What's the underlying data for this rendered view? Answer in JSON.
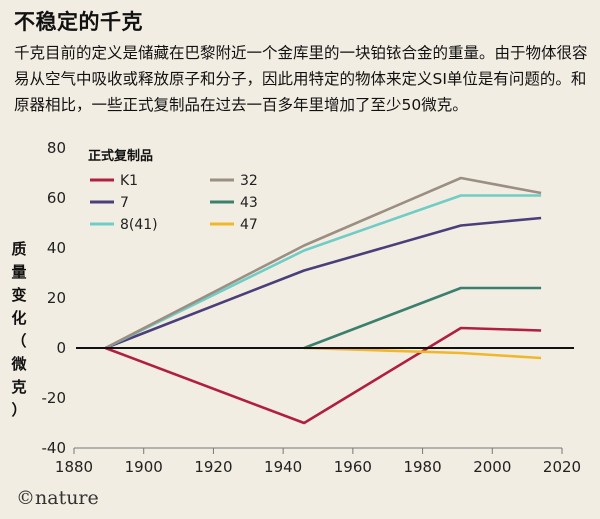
{
  "title": "不稳定的千克",
  "description": "千克目前的定义是储藏在巴黎附近一个金库里的一块铂铱合金的重量。由于物体很容易从空气中吸收或释放原子和分子，因此用特定的物体来定义SI单位是有问题的。和原器相比，一些正式复制品在过去一百多年里增加了至少50微克。",
  "credit": "©nature",
  "chart_data": {
    "type": "line",
    "title": "",
    "xlabel": "",
    "ylabel_chars": [
      "质",
      "量",
      "变",
      "化",
      "（",
      "微",
      "克",
      "）"
    ],
    "xlim": [
      1880,
      2020
    ],
    "ylim": [
      -40,
      80
    ],
    "xticks": [
      1880,
      1900,
      1920,
      1940,
      1960,
      1980,
      2000,
      2020
    ],
    "yticks": [
      -40,
      -20,
      0,
      20,
      40,
      60,
      80
    ],
    "legend_title": "正式复制品",
    "legend_position": "top-left",
    "grid": false,
    "series": [
      {
        "name": "K1",
        "color": "#b01f3f",
        "points": [
          [
            1889,
            0
          ],
          [
            1946,
            -30
          ],
          [
            1991,
            8
          ],
          [
            2014,
            7
          ]
        ]
      },
      {
        "name": "7",
        "color": "#4b3f7a",
        "points": [
          [
            1889,
            0
          ],
          [
            1946,
            31
          ],
          [
            1991,
            49
          ],
          [
            2014,
            52
          ]
        ]
      },
      {
        "name": "8(41)",
        "color": "#6fcdc5",
        "points": [
          [
            1889,
            0
          ],
          [
            1946,
            39
          ],
          [
            1991,
            61
          ],
          [
            2014,
            61
          ]
        ]
      },
      {
        "name": "32",
        "color": "#9a8f82",
        "points": [
          [
            1889,
            0
          ],
          [
            1946,
            41
          ],
          [
            1991,
            68
          ],
          [
            2014,
            62
          ]
        ]
      },
      {
        "name": "43",
        "color": "#3b7f6e",
        "points": [
          [
            1946,
            0
          ],
          [
            1991,
            24
          ],
          [
            2014,
            24
          ]
        ]
      },
      {
        "name": "47",
        "color": "#f1b72b",
        "points": [
          [
            1946,
            0
          ],
          [
            1991,
            -2
          ],
          [
            2014,
            -4
          ]
        ]
      }
    ]
  }
}
